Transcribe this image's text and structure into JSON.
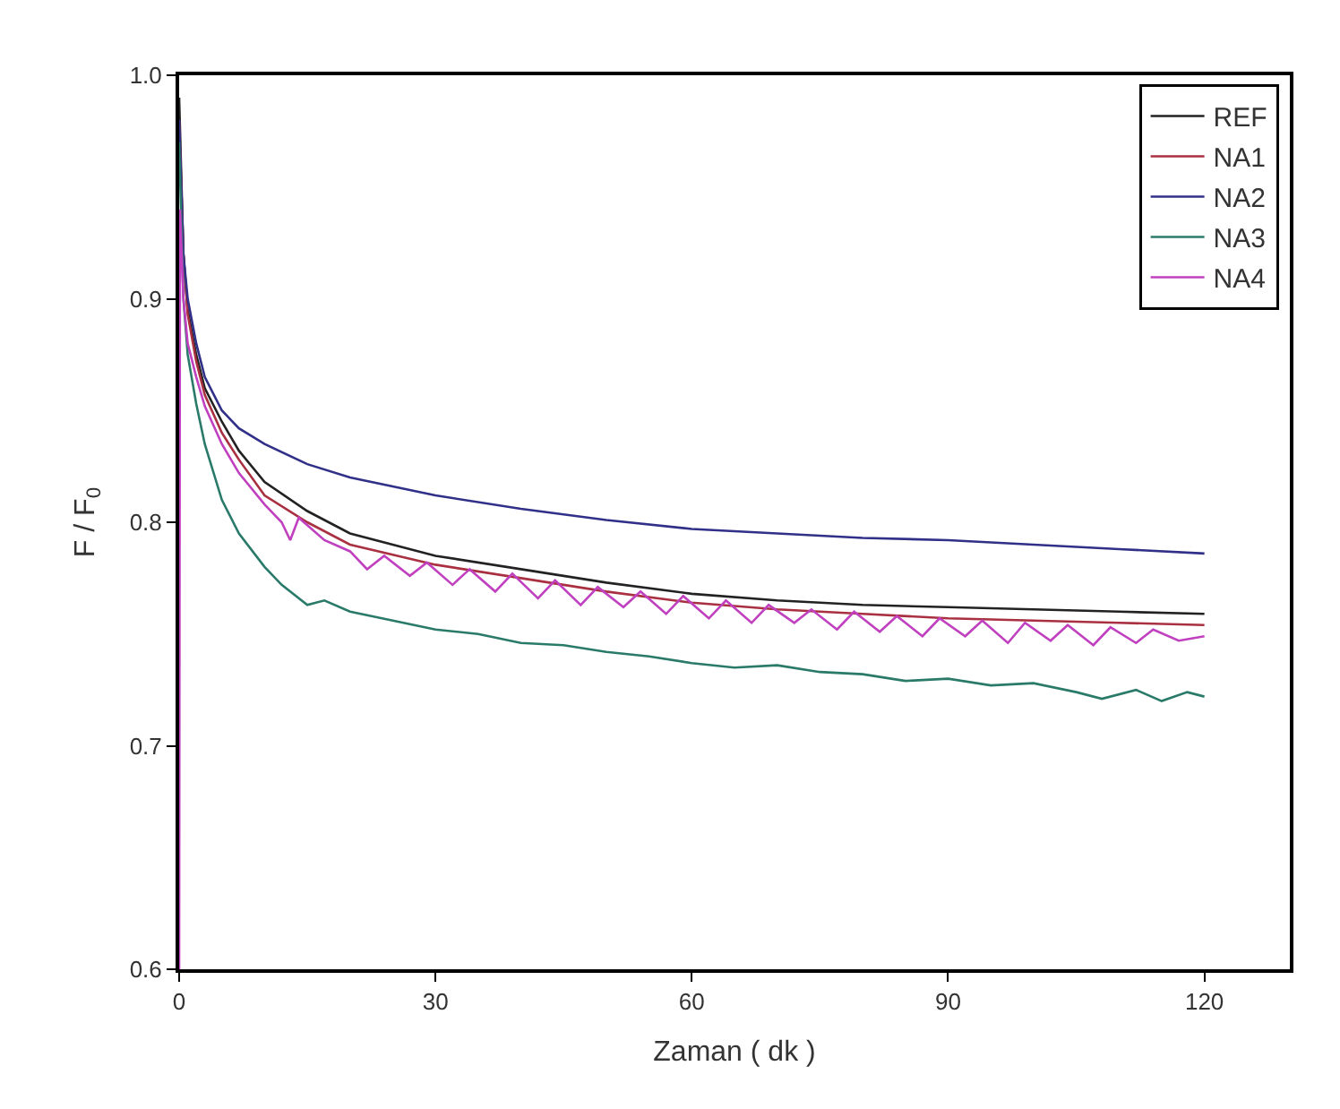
{
  "chart_data": {
    "type": "line",
    "xlabel": "Zaman ( dk )",
    "ylabel": "F / F$_{0}$",
    "xlim": [
      0,
      130
    ],
    "xticks": [
      0,
      30,
      60,
      90,
      120
    ],
    "ylim": [
      0.6,
      1.0
    ],
    "yticks": [
      0.6,
      0.7,
      0.8,
      0.9,
      {
        "value": 1.0,
        "label": "1.0"
      }
    ],
    "legend": "top right",
    "marker": "none",
    "line_style": "solid",
    "series": [
      {
        "name": "REF",
        "color": "#222222",
        "x": [
          0,
          0.5,
          1,
          2,
          3,
          5,
          7,
          10,
          15,
          20,
          30,
          40,
          50,
          60,
          70,
          80,
          90,
          100,
          110,
          120
        ],
        "values": [
          0.99,
          0.92,
          0.895,
          0.875,
          0.86,
          0.845,
          0.832,
          0.818,
          0.805,
          0.795,
          0.785,
          0.779,
          0.773,
          0.768,
          0.765,
          0.763,
          0.762,
          0.761,
          0.76,
          0.759
        ]
      },
      {
        "name": "NA1",
        "color": "#a83040",
        "x": [
          0,
          0.5,
          1,
          2,
          3,
          5,
          7,
          10,
          15,
          20,
          30,
          40,
          50,
          60,
          70,
          80,
          90,
          100,
          110,
          120
        ],
        "values": [
          0.98,
          0.92,
          0.893,
          0.872,
          0.857,
          0.84,
          0.828,
          0.812,
          0.8,
          0.79,
          0.781,
          0.775,
          0.769,
          0.764,
          0.761,
          0.759,
          0.757,
          0.756,
          0.755,
          0.754
        ]
      },
      {
        "name": "NA2",
        "color": "#303088",
        "x": [
          0,
          0.5,
          1,
          2,
          3,
          5,
          7,
          10,
          15,
          20,
          30,
          40,
          50,
          60,
          70,
          80,
          90,
          100,
          110,
          120
        ],
        "values": [
          0.98,
          0.92,
          0.9,
          0.88,
          0.865,
          0.85,
          0.842,
          0.835,
          0.826,
          0.82,
          0.812,
          0.806,
          0.801,
          0.797,
          0.795,
          0.793,
          0.792,
          0.79,
          0.788,
          0.786
        ]
      },
      {
        "name": "NA3",
        "color": "#2a7a6a",
        "x": [
          0,
          0.5,
          1,
          2,
          3,
          5,
          7,
          10,
          12,
          15,
          17,
          20,
          25,
          30,
          35,
          40,
          45,
          50,
          55,
          60,
          65,
          70,
          75,
          80,
          85,
          90,
          95,
          100,
          105,
          108,
          112,
          115,
          118,
          120
        ],
        "values": [
          0.97,
          0.9,
          0.875,
          0.853,
          0.835,
          0.81,
          0.795,
          0.78,
          0.772,
          0.763,
          0.765,
          0.76,
          0.756,
          0.752,
          0.75,
          0.746,
          0.745,
          0.742,
          0.74,
          0.737,
          0.735,
          0.736,
          0.733,
          0.732,
          0.729,
          0.73,
          0.727,
          0.728,
          0.724,
          0.721,
          0.725,
          0.72,
          0.724,
          0.722
        ]
      },
      {
        "name": "NA4",
        "color": "#c040c0",
        "x": [
          0,
          0.1,
          0.5,
          1,
          2,
          3,
          5,
          7,
          10,
          12,
          13,
          14,
          17,
          20,
          22,
          24,
          27,
          29,
          32,
          34,
          37,
          39,
          42,
          44,
          47,
          49,
          52,
          54,
          57,
          59,
          62,
          64,
          67,
          69,
          72,
          74,
          77,
          79,
          82,
          84,
          87,
          89,
          92,
          94,
          97,
          99,
          102,
          104,
          107,
          109,
          112,
          114,
          117,
          120
        ],
        "values": [
          0.6,
          0.94,
          0.9,
          0.88,
          0.865,
          0.852,
          0.835,
          0.822,
          0.808,
          0.8,
          0.792,
          0.802,
          0.792,
          0.787,
          0.779,
          0.785,
          0.776,
          0.782,
          0.772,
          0.779,
          0.769,
          0.777,
          0.766,
          0.774,
          0.763,
          0.771,
          0.762,
          0.769,
          0.759,
          0.767,
          0.757,
          0.765,
          0.755,
          0.763,
          0.755,
          0.761,
          0.752,
          0.76,
          0.751,
          0.758,
          0.749,
          0.757,
          0.749,
          0.756,
          0.746,
          0.755,
          0.747,
          0.754,
          0.745,
          0.753,
          0.746,
          0.752,
          0.747,
          0.749
        ]
      }
    ]
  }
}
